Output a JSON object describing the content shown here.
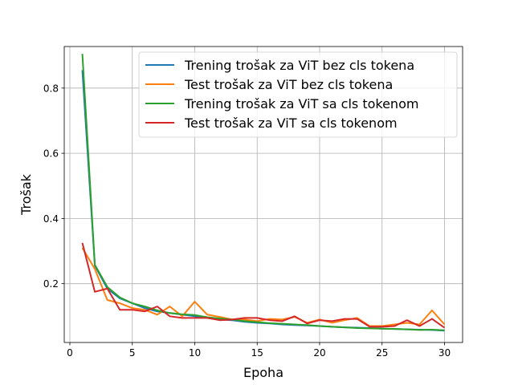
{
  "chart_data": {
    "type": "line",
    "title": "",
    "xlabel": "Epoha",
    "ylabel": "Trošak",
    "xlim": [
      -0.45,
      31.45
    ],
    "ylim": [
      0.0196,
      0.9275
    ],
    "xticks": [
      0,
      5,
      10,
      15,
      20,
      25,
      30
    ],
    "yticks": [
      0.2,
      0.4,
      0.6,
      0.8
    ],
    "xtick_labels": [
      "0",
      "5",
      "10",
      "15",
      "20",
      "25",
      "30"
    ],
    "ytick_labels": [
      "0.2",
      "0.4",
      "0.6",
      "0.8"
    ],
    "grid": true,
    "legend_position": "top-right",
    "x": [
      1,
      2,
      3,
      4,
      5,
      6,
      7,
      8,
      9,
      10,
      11,
      12,
      13,
      14,
      15,
      16,
      17,
      18,
      19,
      20,
      21,
      22,
      23,
      24,
      25,
      26,
      27,
      28,
      29,
      30
    ],
    "series": [
      {
        "name": "Trening trošak za ViT bez cls tokena",
        "color": "#1f77b4",
        "values": [
          0.855,
          0.255,
          0.185,
          0.155,
          0.14,
          0.125,
          0.115,
          0.11,
          0.105,
          0.1,
          0.095,
          0.09,
          0.088,
          0.083,
          0.08,
          0.078,
          0.075,
          0.073,
          0.072,
          0.07,
          0.068,
          0.066,
          0.065,
          0.064,
          0.062,
          0.061,
          0.06,
          0.059,
          0.058,
          0.056
        ]
      },
      {
        "name": "Test trošak za ViT bez cls tokena",
        "color": "#ff7f0e",
        "values": [
          0.31,
          0.245,
          0.15,
          0.14,
          0.125,
          0.12,
          0.105,
          0.13,
          0.1,
          0.145,
          0.105,
          0.098,
          0.09,
          0.09,
          0.085,
          0.092,
          0.09,
          0.098,
          0.08,
          0.09,
          0.08,
          0.088,
          0.095,
          0.07,
          0.07,
          0.075,
          0.08,
          0.075,
          0.118,
          0.075
        ]
      },
      {
        "name": "Trening trošak za ViT sa cls tokenom",
        "color": "#2ca02c",
        "values": [
          0.905,
          0.258,
          0.19,
          0.158,
          0.14,
          0.13,
          0.118,
          0.11,
          0.106,
          0.104,
          0.097,
          0.093,
          0.09,
          0.085,
          0.082,
          0.079,
          0.077,
          0.075,
          0.073,
          0.07,
          0.068,
          0.066,
          0.064,
          0.063,
          0.062,
          0.061,
          0.06,
          0.058,
          0.059,
          0.057
        ]
      },
      {
        "name": "Test trošak za ViT sa cls tokenom",
        "color": "#d62728",
        "values": [
          0.325,
          0.175,
          0.185,
          0.12,
          0.12,
          0.115,
          0.13,
          0.1,
          0.095,
          0.095,
          0.095,
          0.088,
          0.09,
          0.095,
          0.095,
          0.088,
          0.085,
          0.1,
          0.078,
          0.088,
          0.085,
          0.092,
          0.092,
          0.068,
          0.068,
          0.07,
          0.088,
          0.07,
          0.092,
          0.065
        ]
      }
    ]
  }
}
